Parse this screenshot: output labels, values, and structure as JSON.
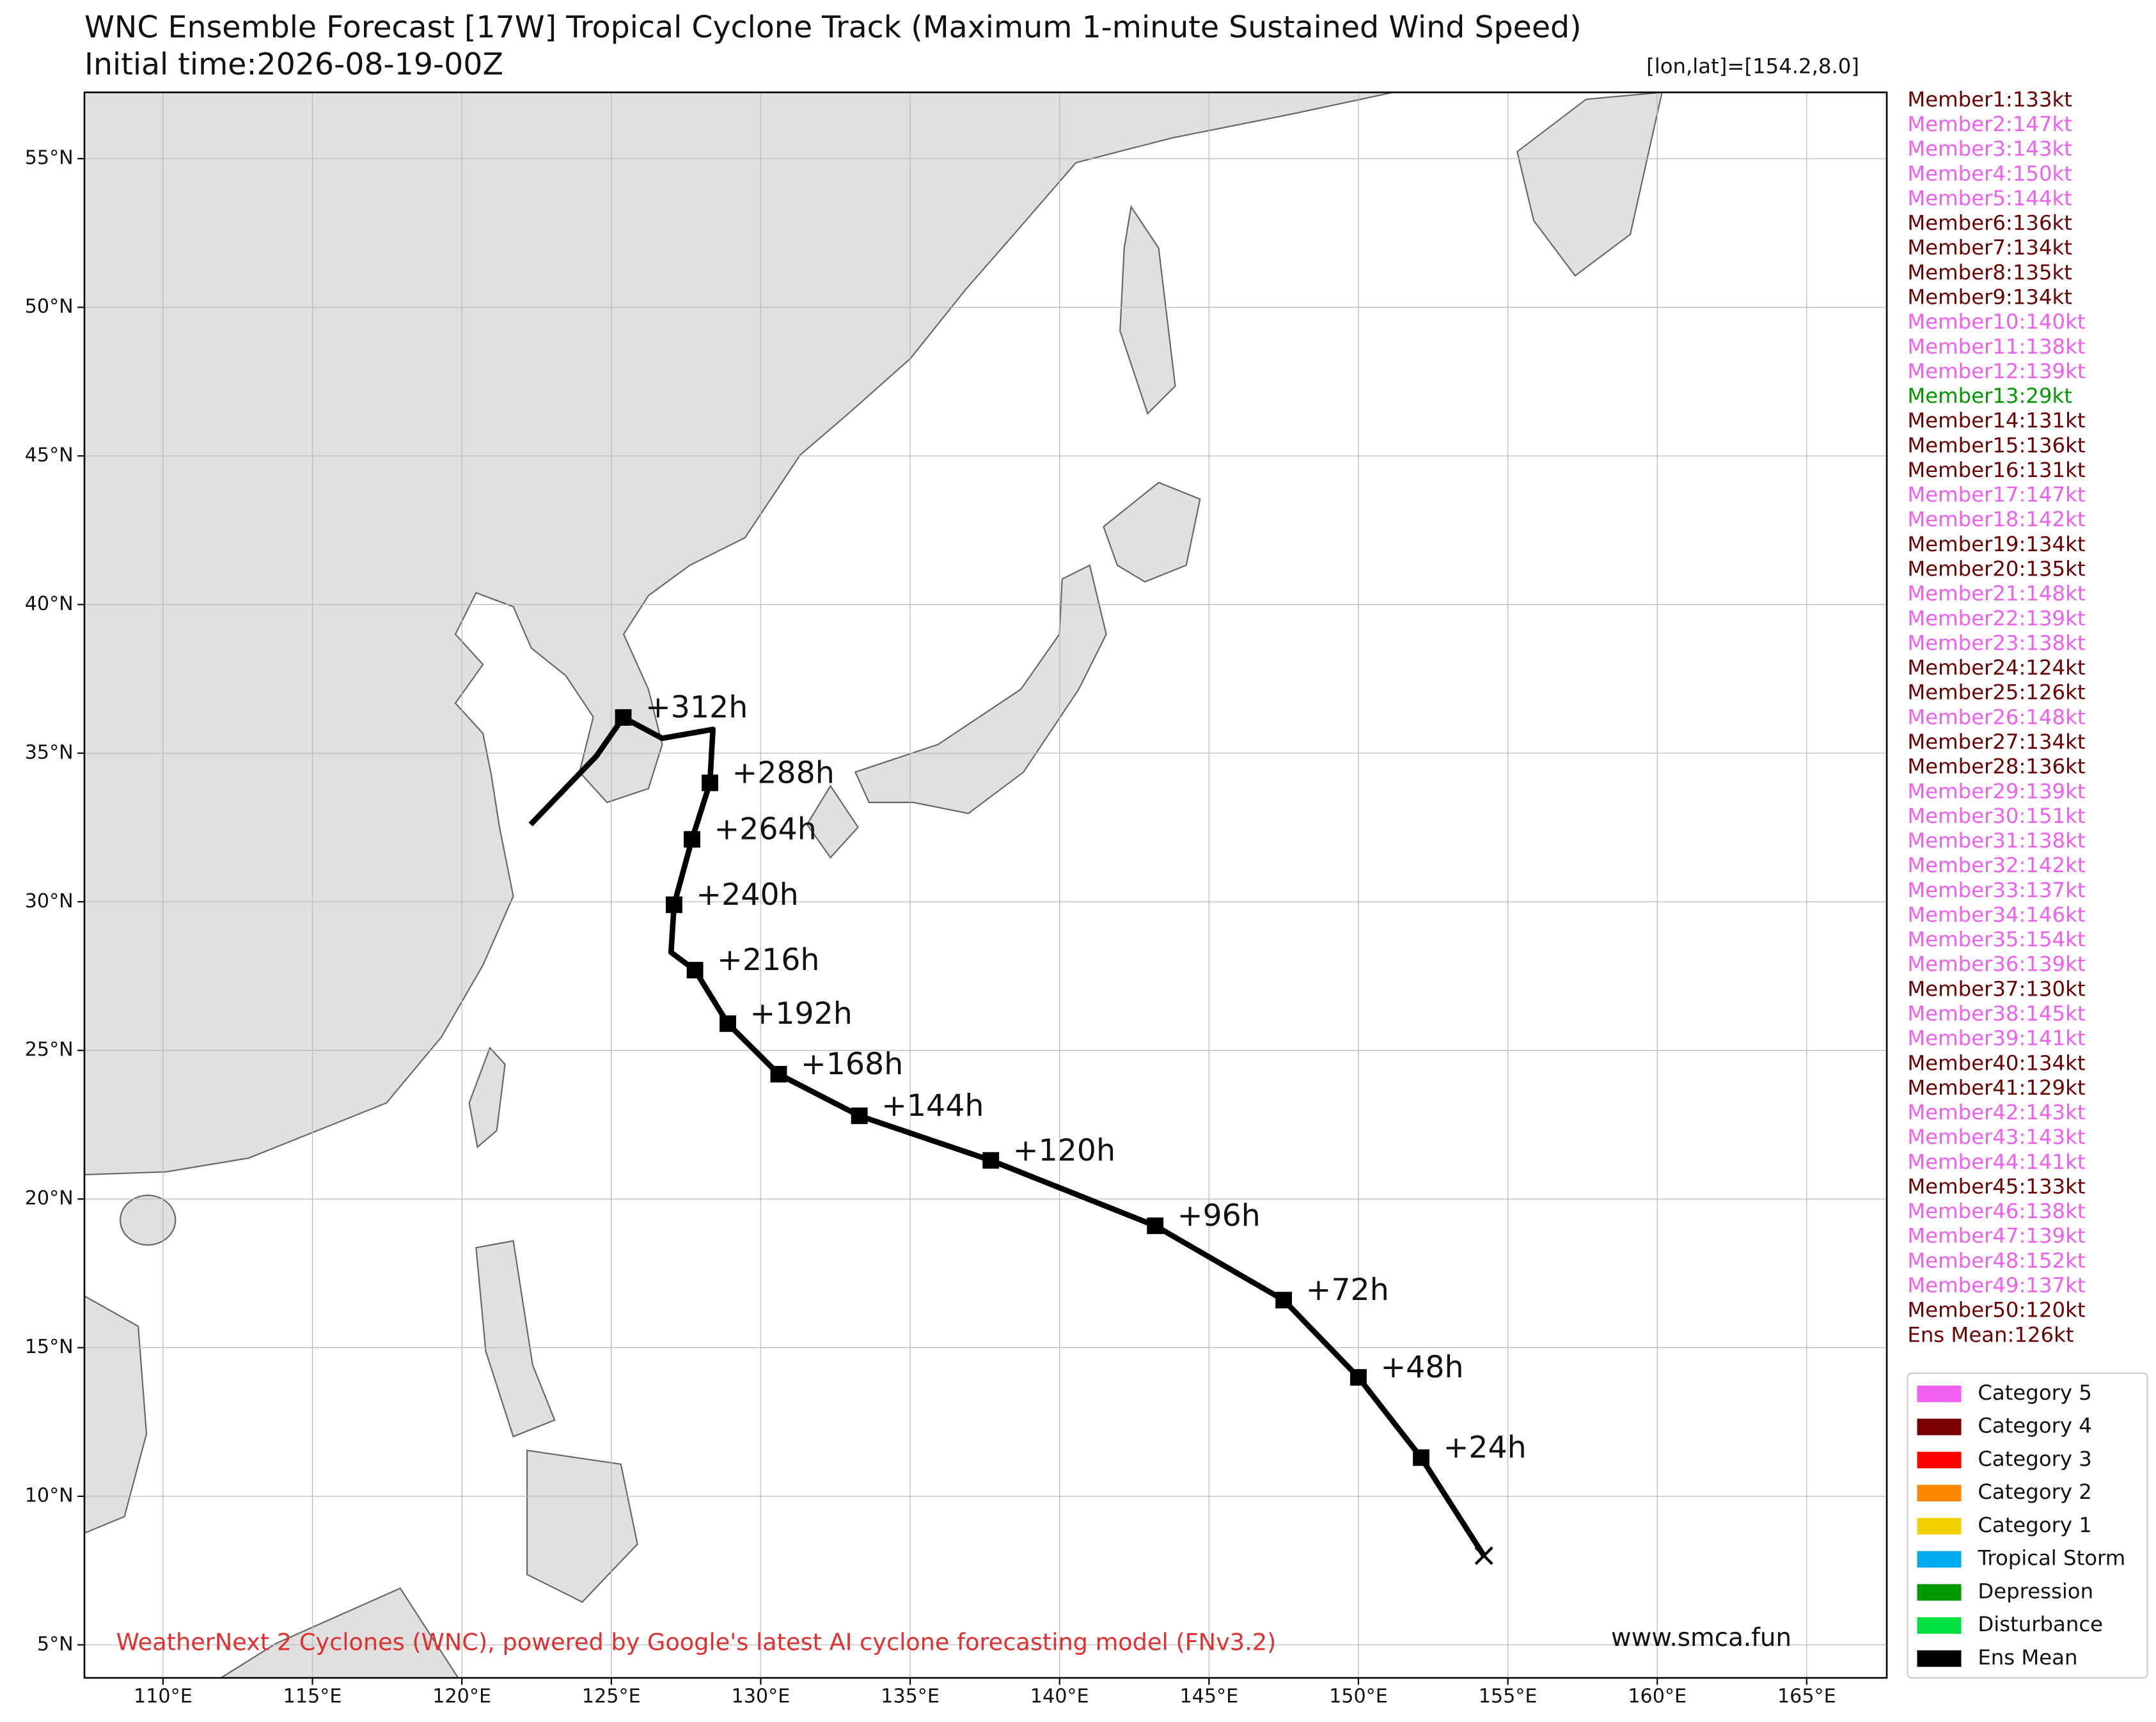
{
  "chart_data": {
    "type": "track-map",
    "title": "WNC Ensemble Forecast [17W] Tropical Cyclone Track (Maximum 1-minute Sustained Wind Speed)",
    "subtitle": "Initial time:2026-08-19-00Z",
    "position_label": "[lon,lat]=[154.2,8.0]",
    "footer": "WeatherNext 2 Cyclones (WNC), powered by Google's latest AI cyclone forecasting model (FNv3.2)",
    "website": "www.smca.fun",
    "xlim": [
      107.37,
      167.68
    ],
    "ylim": [
      3.89,
      57.23
    ],
    "xticks": [
      {
        "value": 110,
        "label": "110°E"
      },
      {
        "value": 115,
        "label": "115°E"
      },
      {
        "value": 120,
        "label": "120°E"
      },
      {
        "value": 125,
        "label": "125°E"
      },
      {
        "value": 130,
        "label": "130°E"
      },
      {
        "value": 135,
        "label": "135°E"
      },
      {
        "value": 140,
        "label": "140°E"
      },
      {
        "value": 145,
        "label": "145°E"
      },
      {
        "value": 150,
        "label": "150°E"
      },
      {
        "value": 155,
        "label": "155°E"
      },
      {
        "value": 160,
        "label": "160°E"
      },
      {
        "value": 165,
        "label": "165°E"
      }
    ],
    "yticks": [
      {
        "value": 5,
        "label": "5°N"
      },
      {
        "value": 10,
        "label": "10°N"
      },
      {
        "value": 15,
        "label": "15°N"
      },
      {
        "value": 20,
        "label": "20°N"
      },
      {
        "value": 25,
        "label": "25°N"
      },
      {
        "value": 30,
        "label": "30°N"
      },
      {
        "value": 35,
        "label": "35°N"
      },
      {
        "value": 40,
        "label": "40°N"
      },
      {
        "value": 45,
        "label": "45°N"
      },
      {
        "value": 50,
        "label": "50°N"
      },
      {
        "value": 55,
        "label": "55°N"
      }
    ],
    "grid": true,
    "member_labels": [
      "Member1:133kt",
      "Member2:147kt",
      "Member3:143kt",
      "Member4:150kt",
      "Member5:144kt",
      "Member6:136kt",
      "Member7:134kt",
      "Member8:135kt",
      "Member9:134kt",
      "Member10:140kt",
      "Member11:138kt",
      "Member12:139kt",
      "Member13:29kt",
      "Member14:131kt",
      "Member15:136kt",
      "Member16:131kt",
      "Member17:147kt",
      "Member18:142kt",
      "Member19:134kt",
      "Member20:135kt",
      "Member21:148kt",
      "Member22:139kt",
      "Member23:138kt",
      "Member24:124kt",
      "Member25:126kt",
      "Member26:148kt",
      "Member27:134kt",
      "Member28:136kt",
      "Member29:139kt",
      "Member30:151kt",
      "Member31:138kt",
      "Member32:142kt",
      "Member33:137kt",
      "Member34:146kt",
      "Member35:154kt",
      "Member36:139kt",
      "Member37:130kt",
      "Member38:145kt",
      "Member39:141kt",
      "Member40:134kt",
      "Member41:129kt",
      "Member42:143kt",
      "Member43:143kt",
      "Member44:141kt",
      "Member45:133kt",
      "Member46:138kt",
      "Member47:139kt",
      "Member48:152kt",
      "Member49:137kt",
      "Member50:120kt",
      "Ens Mean:126kt"
    ],
    "member_colors": [
      "#6b0000",
      "#f060f0",
      "#f060f0",
      "#f060f0",
      "#f060f0",
      "#6b0000",
      "#6b0000",
      "#6b0000",
      "#6b0000",
      "#f060f0",
      "#f060f0",
      "#f060f0",
      "#009900",
      "#6b0000",
      "#6b0000",
      "#6b0000",
      "#f060f0",
      "#f060f0",
      "#6b0000",
      "#6b0000",
      "#f060f0",
      "#f060f0",
      "#f060f0",
      "#6b0000",
      "#6b0000",
      "#f060f0",
      "#6b0000",
      "#6b0000",
      "#f060f0",
      "#f060f0",
      "#f060f0",
      "#f060f0",
      "#f060f0",
      "#f060f0",
      "#f060f0",
      "#f060f0",
      "#6b0000",
      "#f060f0",
      "#f060f0",
      "#6b0000",
      "#6b0000",
      "#f060f0",
      "#f060f0",
      "#f060f0",
      "#6b0000",
      "#f060f0",
      "#f060f0",
      "#f060f0",
      "#f060f0",
      "#6b0000",
      "#6b0000"
    ],
    "legend": [
      {
        "name": "Category 5",
        "color": "#f060f0"
      },
      {
        "name": "Category 4",
        "color": "#7a0000"
      },
      {
        "name": "Category 3",
        "color": "#ff0000"
      },
      {
        "name": "Category 2",
        "color": "#ff8800"
      },
      {
        "name": "Category 1",
        "color": "#f0d000"
      },
      {
        "name": "Tropical Storm",
        "color": "#00aaee"
      },
      {
        "name": "Depression",
        "color": "#009900"
      },
      {
        "name": "Disturbance",
        "color": "#00e040"
      },
      {
        "name": "Ens Mean",
        "color": "#000000"
      }
    ],
    "ens_mean": {
      "lon": [
        154.2,
        152.1,
        150.0,
        147.5,
        143.2,
        137.7,
        133.3,
        130.6,
        128.9,
        127.8,
        127.0,
        127.1,
        127.7,
        128.3,
        128.4,
        126.7,
        125.4,
        124.5,
        122.3
      ],
      "lat": [
        8.0,
        11.3,
        14.0,
        16.6,
        19.1,
        21.3,
        22.8,
        24.2,
        25.9,
        27.7,
        28.3,
        29.9,
        32.1,
        34.0,
        35.8,
        35.5,
        36.2,
        34.9,
        32.6
      ],
      "labels": [
        null,
        "+24h",
        "+48h",
        "+72h",
        "+96h",
        "+120h",
        "+144h",
        "+168h",
        "+192h",
        "+216h",
        null,
        "+240h",
        "+264h",
        "+288h",
        null,
        null,
        "+312h",
        null,
        null
      ]
    }
  }
}
